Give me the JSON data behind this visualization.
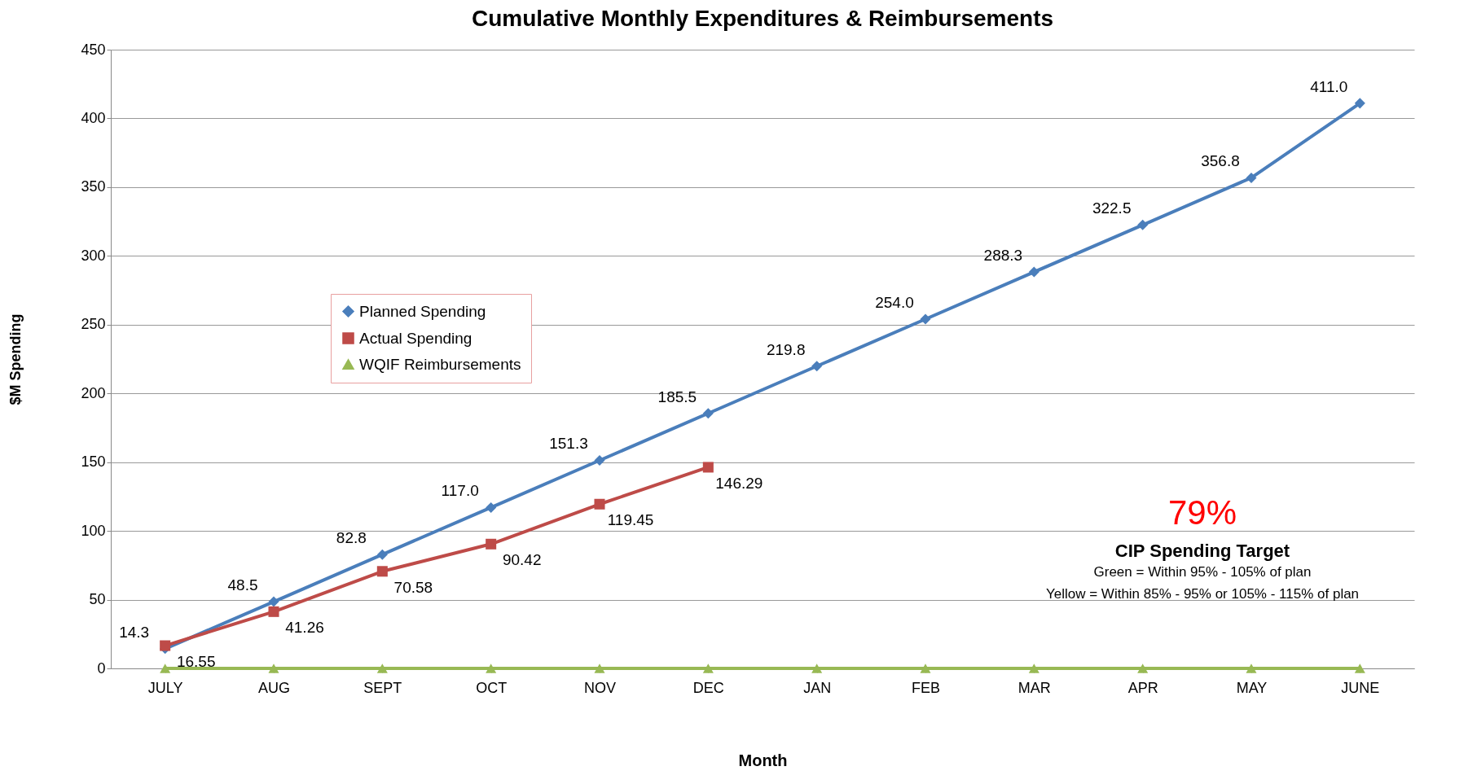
{
  "chart_data": {
    "type": "line",
    "title": "Cumulative Monthly Expenditures & Reimbursements",
    "xlabel": "Month",
    "ylabel": "$M Spending",
    "categories": [
      "JULY",
      "AUG",
      "SEPT",
      "OCT",
      "NOV",
      "DEC",
      "JAN",
      "FEB",
      "MAR",
      "APR",
      "MAY",
      "JUNE"
    ],
    "series": [
      {
        "name": "Planned Spending",
        "color": "#4a7ebb",
        "marker": "diamond",
        "values": [
          14.3,
          48.5,
          82.8,
          117.0,
          151.3,
          185.5,
          219.8,
          254.0,
          288.3,
          322.5,
          356.8,
          411.0
        ],
        "value_labels": [
          "14.3",
          "48.5",
          "82.8",
          "117.0",
          "151.3",
          "185.5",
          "219.8",
          "254.0",
          "288.3",
          "322.5",
          "356.8",
          "411.0"
        ]
      },
      {
        "name": "Actual Spending",
        "color": "#be4b48",
        "marker": "square",
        "values": [
          16.55,
          41.26,
          70.58,
          90.42,
          119.45,
          146.29,
          null,
          null,
          null,
          null,
          null,
          null
        ],
        "value_labels": [
          "16.55",
          "41.26",
          "70.58",
          "90.42",
          "119.45",
          "146.29",
          null,
          null,
          null,
          null,
          null,
          null
        ]
      },
      {
        "name": "WQIF Reimbursements",
        "color": "#98b954",
        "marker": "triangle",
        "values": [
          0,
          0,
          0,
          0,
          0,
          0,
          0,
          0,
          0,
          0,
          0,
          0
        ]
      }
    ],
    "ylim": [
      0,
      450
    ],
    "yticks": [
      0,
      50,
      100,
      150,
      200,
      250,
      300,
      350,
      400,
      450
    ],
    "grid": "y",
    "legend": "top left",
    "annotations": [
      "79%",
      "CIP Spending Target",
      "Green = Within 95% - 105% of plan",
      "Yellow = Within 85% - 95% or 105% - 115% of plan"
    ]
  }
}
